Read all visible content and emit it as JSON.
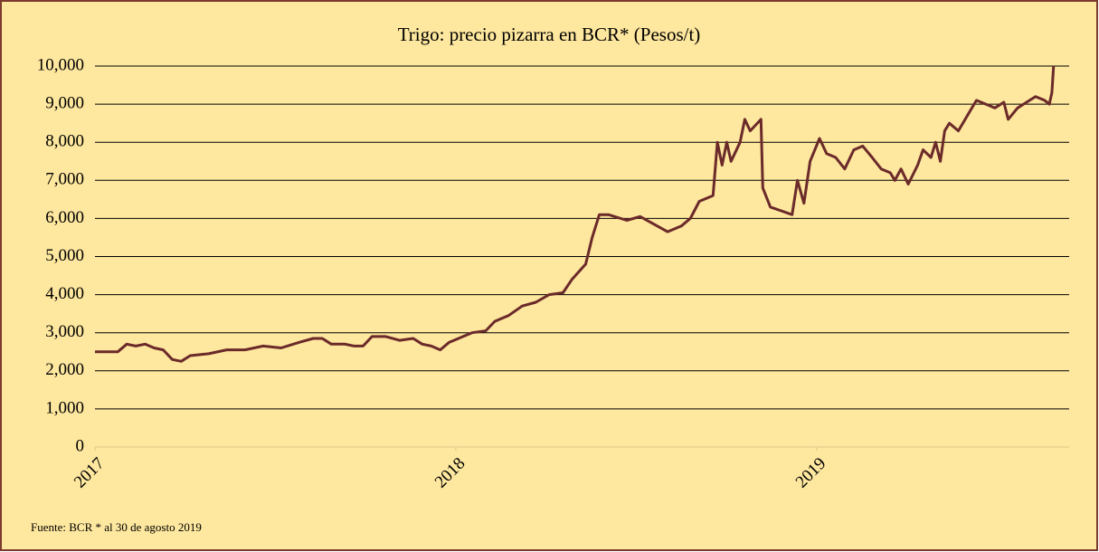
{
  "chart_data": {
    "type": "line",
    "title": "Trigo: precio pizarra en BCR* (Pesos/t)",
    "note": "Fuente: BCR  * al 30  de agosto 2019",
    "color": "#6b2a2a",
    "grid": true,
    "xlim": [
      2017,
      2019.7
    ],
    "xticks": [
      2017,
      2018,
      2019
    ],
    "ylim": [
      0,
      10000
    ],
    "yticks": [
      0,
      {
        "value": 1000,
        "label": "1,000"
      },
      {
        "value": 2000,
        "label": "2,000"
      },
      {
        "value": 3000,
        "label": "3,000"
      },
      {
        "value": 4000,
        "label": "4,000"
      },
      {
        "value": 5000,
        "label": "5,000"
      },
      {
        "value": 6000,
        "label": "6,000"
      },
      {
        "value": 7000,
        "label": "7,000"
      },
      {
        "value": 8000,
        "label": "8,000"
      },
      {
        "value": 9000,
        "label": "9,000"
      },
      {
        "value": 10000,
        "label": "10,000"
      }
    ],
    "x": [
      2017,
      2017.063,
      2017.088,
      2017.113,
      2017.139,
      2017.164,
      2017.189,
      2017.214,
      2017.239,
      2017.264,
      2017.315,
      2017.365,
      2017.416,
      2017.466,
      2017.516,
      2017.567,
      2017.605,
      2017.63,
      2017.655,
      2017.693,
      2017.718,
      2017.743,
      2017.768,
      2017.806,
      2017.844,
      2017.882,
      2017.907,
      2017.932,
      2017.957,
      2017.982,
      2018.02,
      2018.045,
      2018.083,
      2018.108,
      2018.146,
      2018.184,
      2018.222,
      2018.259,
      2018.297,
      2018.322,
      2018.36,
      2018.378,
      2018.398,
      2018.423,
      2018.474,
      2018.511,
      2018.549,
      2018.587,
      2018.625,
      2018.65,
      2018.675,
      2018.713,
      2018.725,
      2018.738,
      2018.751,
      2018.763,
      2018.788,
      2018.801,
      2018.816,
      2018.846,
      2018.851,
      2018.872,
      2018.902,
      2018.932,
      2018.947,
      2018.965,
      2018.982,
      2019.008,
      2019.028,
      2019.053,
      2019.078,
      2019.103,
      2019.128,
      2019.154,
      2019.179,
      2019.204,
      2019.217,
      2019.234,
      2019.254,
      2019.28,
      2019.295,
      2019.317,
      2019.33,
      2019.343,
      2019.355,
      2019.368,
      2019.393,
      2019.418,
      2019.443,
      2019.469,
      2019.494,
      2019.519,
      2019.531,
      2019.557,
      2019.582,
      2019.607,
      2019.632,
      2019.645,
      2019.652,
      2019.657
    ],
    "values": [
      2500,
      2500,
      2700,
      2650,
      2700,
      2600,
      2550,
      2300,
      2250,
      2400,
      2450,
      2550,
      2550,
      2650,
      2600,
      2750,
      2850,
      2850,
      2700,
      2700,
      2650,
      2650,
      2900,
      2900,
      2800,
      2850,
      2700,
      2650,
      2550,
      2750,
      2900,
      3000,
      3050,
      3300,
      3450,
      3700,
      3800,
      4000,
      4050,
      4400,
      4800,
      5500,
      6100,
      6100,
      5950,
      6050,
      5850,
      5650,
      5800,
      6000,
      6450,
      6600,
      8000,
      7400,
      8000,
      7500,
      8000,
      8600,
      8300,
      8600,
      6800,
      6300,
      6200,
      6100,
      7000,
      6400,
      7500,
      8100,
      7700,
      7600,
      7300,
      7800,
      7900,
      7600,
      7300,
      7200,
      7000,
      7300,
      6900,
      7400,
      7800,
      7600,
      8000,
      7500,
      8300,
      8500,
      8300,
      8700,
      9100,
      9000,
      8900,
      9050,
      8600,
      8900,
      9050,
      9200,
      9100,
      9000,
      9300,
      10000
    ]
  }
}
